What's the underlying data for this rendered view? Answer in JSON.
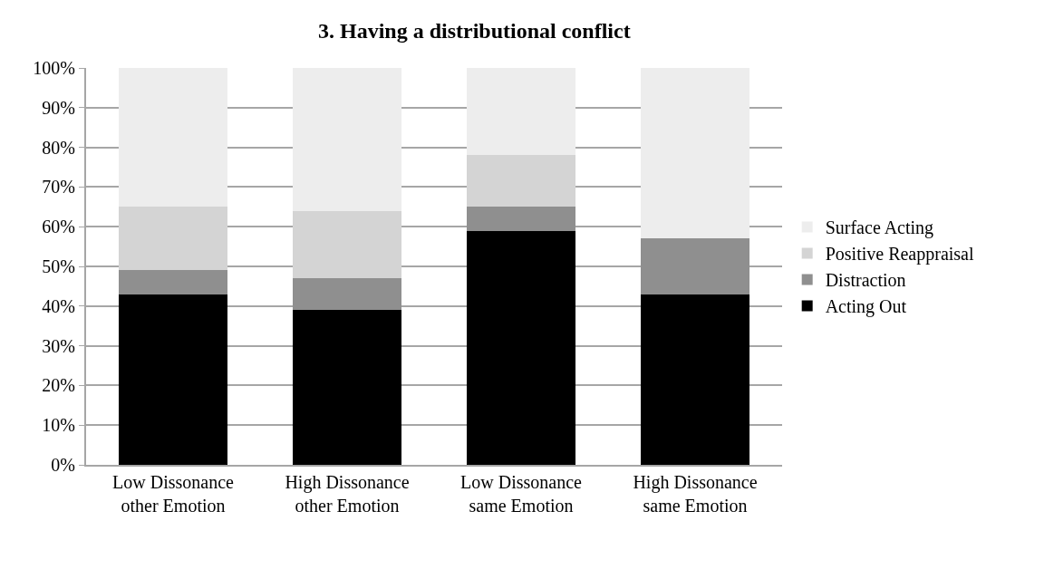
{
  "chart_data": {
    "type": "bar",
    "title": "3. Having a distributional conflict",
    "stacked": true,
    "categories": [
      "Low Dissonance other Emotion",
      "High Dissonance other Emotion",
      "Low Dissonance same Emotion",
      "High Dissonance same Emotion"
    ],
    "series": [
      {
        "name": "Acting Out",
        "color": "#000000",
        "values": [
          43,
          39,
          59,
          43
        ]
      },
      {
        "name": "Distraction",
        "color": "#8f8f8f",
        "values": [
          6,
          8,
          6,
          14
        ]
      },
      {
        "name": "Positive Reappraisal",
        "color": "#d4d4d4",
        "values": [
          16,
          17,
          13,
          0
        ]
      },
      {
        "name": "Surface Acting",
        "color": "#ededed",
        "values": [
          35,
          36,
          22,
          43
        ]
      }
    ],
    "ylim": [
      0,
      100
    ],
    "yticks": [
      {
        "value": 0,
        "label": "0%"
      },
      {
        "value": 10,
        "label": "10%"
      },
      {
        "value": 20,
        "label": "20%"
      },
      {
        "value": 30,
        "label": "30%"
      },
      {
        "value": 40,
        "label": "40%"
      },
      {
        "value": 50,
        "label": "50%"
      },
      {
        "value": 60,
        "label": "60%"
      },
      {
        "value": 70,
        "label": "70%"
      },
      {
        "value": 80,
        "label": "80%"
      },
      {
        "value": 90,
        "label": "90%"
      },
      {
        "value": 100,
        "label": "100%"
      }
    ],
    "grid": "y",
    "legend": "right"
  }
}
